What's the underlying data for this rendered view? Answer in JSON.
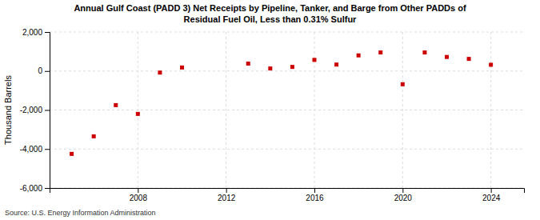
{
  "chart_data": {
    "type": "scatter",
    "title": "Annual Gulf Coast (PADD 3) Net Receipts by Pipeline, Tanker, and Barge from Other PADDs of\nResidual Fuel Oil, Less than 0.31% Sulfur",
    "ylabel": "Thousand Barrels",
    "annotations": [
      "Source: U.S. Energy Information Administration"
    ],
    "x": [
      2005,
      2006,
      2007,
      2008,
      2009,
      2010,
      2013,
      2014,
      2015,
      2016,
      2017,
      2018,
      2019,
      2020,
      2021,
      2022,
      2023,
      2024
    ],
    "values": [
      -4250,
      -3350,
      -1750,
      -2200,
      -80,
      180,
      380,
      130,
      210,
      570,
      330,
      800,
      950,
      -680,
      950,
      720,
      620,
      320
    ],
    "color": "#cc0000",
    "marker": "square",
    "xlim": [
      2004.0,
      2025.5
    ],
    "xticks": [
      2008,
      2012,
      2016,
      2020,
      2024
    ],
    "ylim": [
      -6000,
      2000
    ],
    "yticks": [
      {
        "value": -6000,
        "label": "-6,000"
      },
      {
        "value": -4000,
        "label": "-4,000"
      },
      {
        "value": -2000,
        "label": "-2,000"
      },
      0,
      {
        "value": 2000,
        "label": "2,000"
      }
    ],
    "grid": true
  }
}
